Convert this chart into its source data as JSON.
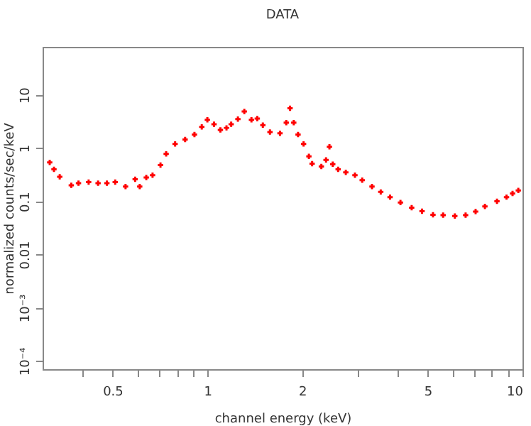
{
  "chart_data": {
    "type": "scatter",
    "title": "DATA",
    "xlabel": "channel energy (keV)",
    "ylabel": "normalized counts/sec/keV",
    "log": "xy",
    "grid": false,
    "marker": "cross",
    "xlim": [
      0.3,
      10
    ],
    "ylim": [
      7e-05,
      80
    ],
    "xticks": [
      {
        "value": 0.4,
        "label": null
      },
      0.5,
      {
        "value": 0.6,
        "label": null
      },
      {
        "value": 0.7,
        "label": null
      },
      {
        "value": 0.8,
        "label": null
      },
      {
        "value": 0.9,
        "label": null
      },
      1,
      2,
      {
        "value": 3,
        "label": null
      },
      {
        "value": 4,
        "label": null
      },
      5,
      {
        "value": 6,
        "label": null
      },
      {
        "value": 7,
        "label": null
      },
      {
        "value": 8,
        "label": null
      },
      {
        "value": 9,
        "label": null
      },
      10
    ],
    "yticks": [
      {
        "value": 0.0001,
        "label": "10⁻⁴"
      },
      {
        "value": 0.001,
        "label": "10⁻³"
      },
      0.01,
      0.1,
      1,
      10
    ],
    "series": [
      {
        "color": "#ff0000",
        "x": [
          0.316,
          0.326,
          0.34,
          0.37,
          0.39,
          0.42,
          0.45,
          0.48,
          0.51,
          0.55,
          0.59,
          0.61,
          0.64,
          0.67,
          0.71,
          0.74,
          0.79,
          0.85,
          0.91,
          0.96,
          1.0,
          1.05,
          1.1,
          1.15,
          1.19,
          1.25,
          1.31,
          1.38,
          1.44,
          1.5,
          1.58,
          1.7,
          1.78,
          1.83,
          1.88,
          1.94,
          2.02,
          2.1,
          2.15,
          2.3,
          2.38,
          2.44,
          2.5,
          2.6,
          2.75,
          2.94,
          3.1,
          3.33,
          3.55,
          3.8,
          4.1,
          4.45,
          4.8,
          5.2,
          5.6,
          6.1,
          6.6,
          7.1,
          7.6,
          8.3,
          8.9,
          9.3,
          9.7
        ],
        "values": [
          0.54,
          0.4,
          0.29,
          0.2,
          0.22,
          0.23,
          0.22,
          0.22,
          0.23,
          0.19,
          0.26,
          0.19,
          0.28,
          0.31,
          0.48,
          0.78,
          1.2,
          1.45,
          1.8,
          2.5,
          3.4,
          2.8,
          2.2,
          2.4,
          2.8,
          3.5,
          4.9,
          3.4,
          3.6,
          2.7,
          2.0,
          1.9,
          3.0,
          5.6,
          3.0,
          1.8,
          1.2,
          0.7,
          0.51,
          0.45,
          0.6,
          1.06,
          0.5,
          0.4,
          0.35,
          0.31,
          0.25,
          0.19,
          0.15,
          0.12,
          0.095,
          0.076,
          0.065,
          0.056,
          0.055,
          0.053,
          0.055,
          0.064,
          0.08,
          0.1,
          0.12,
          0.14,
          0.16
        ]
      }
    ]
  }
}
